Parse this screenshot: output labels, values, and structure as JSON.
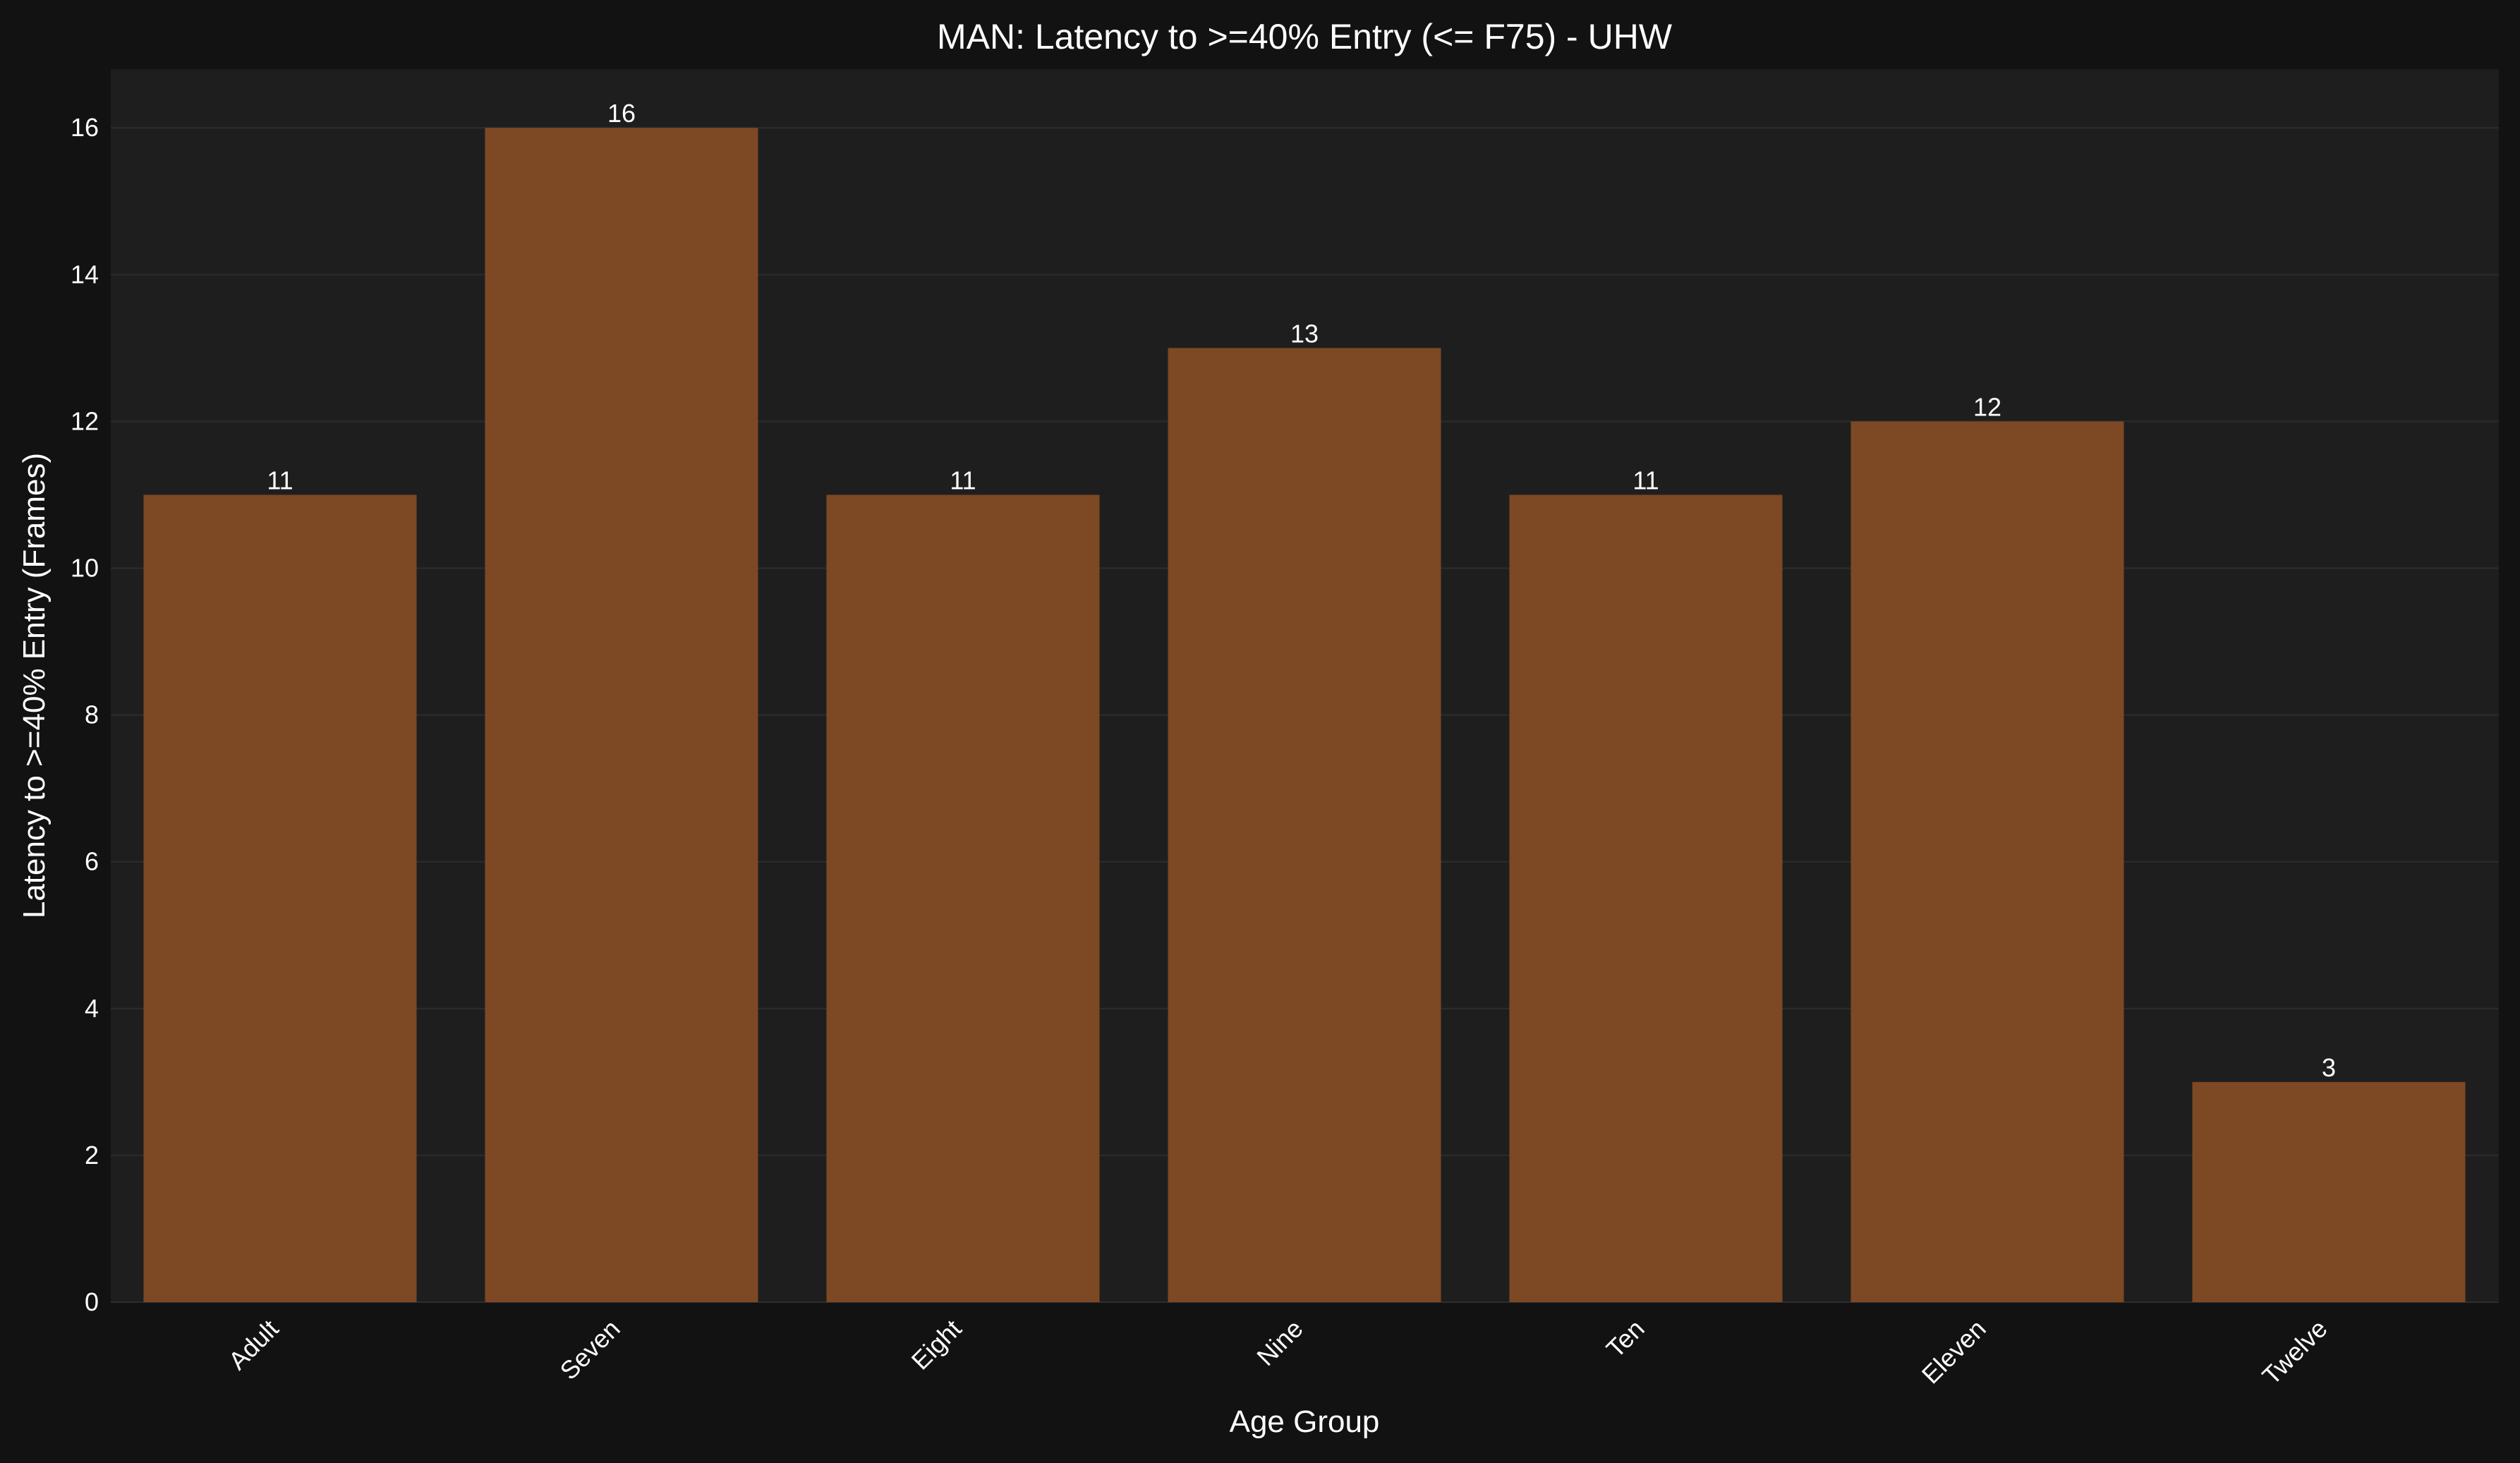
{
  "chart_data": {
    "type": "bar",
    "title": "MAN: Latency to >=40% Entry (<= F75) - UHW",
    "xlabel": "Age Group",
    "ylabel": "Latency to >=40% Entry (Frames)",
    "categories": [
      "Adult",
      "Seven",
      "Eight",
      "Nine",
      "Ten",
      "Eleven",
      "Twelve"
    ],
    "values": [
      11,
      16,
      11,
      13,
      11,
      12,
      3
    ],
    "data_labels": [
      "11",
      "16",
      "11",
      "13",
      "11",
      "12",
      "3"
    ],
    "yticks": [
      0,
      2,
      4,
      6,
      8,
      10,
      12,
      14,
      16
    ],
    "ytick_labels": [
      "0",
      "2",
      "4",
      "6",
      "8",
      "10",
      "12",
      "14",
      "16"
    ],
    "ylim": [
      0,
      16.8
    ],
    "grid": true,
    "colors": {
      "bar": "#7d4824",
      "plot_background": "#1e1e1e",
      "figure_background": "#121212",
      "text": "#ffffff",
      "grid": "#2d2d2d"
    }
  }
}
